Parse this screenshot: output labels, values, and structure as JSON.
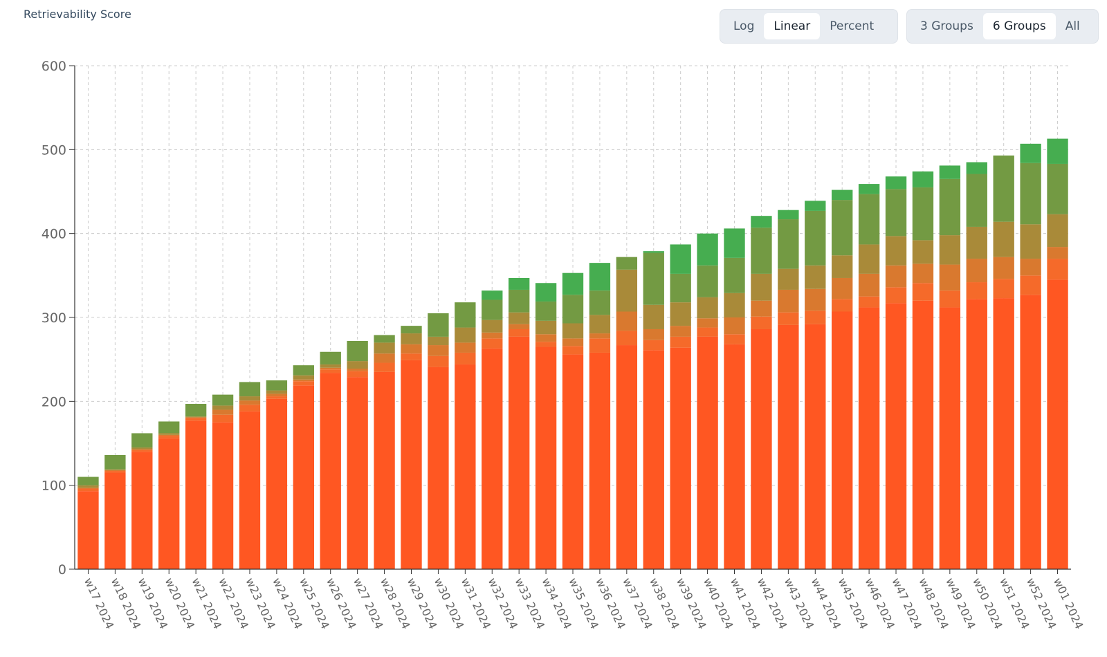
{
  "title": "Retrievability Score",
  "scale_toggle": {
    "options": [
      "Log",
      "Linear",
      "Percent"
    ],
    "active": "Linear"
  },
  "groups_toggle": {
    "options": [
      "3 Groups",
      "6 Groups",
      "All"
    ],
    "active": "6 Groups"
  },
  "chart_data": {
    "type": "bar",
    "stacked": true,
    "ylim": [
      0,
      600
    ],
    "yticks": [
      0,
      100,
      200,
      300,
      400,
      500,
      600
    ],
    "grid": true,
    "categories": [
      "w17 2024",
      "w18 2024",
      "w19 2024",
      "w20 2024",
      "w21 2024",
      "w22 2024",
      "w23 2024",
      "w24 2024",
      "w25 2024",
      "w26 2024",
      "w27 2024",
      "w28 2024",
      "w29 2024",
      "w30 2024",
      "w31 2024",
      "w32 2024",
      "w33 2024",
      "w34 2024",
      "w35 2024",
      "w36 2024",
      "w37 2024",
      "w38 2024",
      "w39 2024",
      "w40 2024",
      "w41 2024",
      "w42 2024",
      "w43 2024",
      "w44 2024",
      "w45 2024",
      "w46 2024",
      "w47 2024",
      "w48 2024",
      "w49 2024",
      "w50 2024",
      "w51 2024",
      "w52 2024",
      "w01 2024"
    ],
    "series": [
      {
        "color": "#ff5722",
        "values": [
          93,
          115,
          140,
          156,
          177,
          175,
          188,
          203,
          219,
          234,
          229,
          235,
          249,
          241,
          244,
          263,
          277,
          265,
          256,
          258,
          267,
          261,
          264,
          277,
          268,
          286,
          291,
          292,
          307,
          312,
          317,
          320,
          312,
          322,
          323,
          327,
          345
        ]
      },
      {
        "color": "#f56a2a",
        "values": [
          3,
          2,
          2,
          3,
          3,
          9,
          8,
          3,
          5,
          4,
          7,
          11,
          8,
          13,
          14,
          12,
          9,
          6,
          10,
          17,
          17,
          12,
          13,
          11,
          12,
          15,
          15,
          16,
          15,
          13,
          19,
          21,
          20,
          20,
          23,
          23,
          25
        ]
      },
      {
        "color": "#d9792f",
        "values": [
          1,
          1,
          1,
          1,
          1,
          6,
          5,
          3,
          2,
          2,
          3,
          11,
          11,
          13,
          12,
          7,
          6,
          9,
          9,
          6,
          23,
          13,
          13,
          11,
          20,
          19,
          27,
          26,
          25,
          27,
          26,
          23,
          31,
          28,
          26,
          20,
          14
        ]
      },
      {
        "color": "#a98a39",
        "values": [
          3,
          1,
          2,
          2,
          1,
          5,
          5,
          4,
          5,
          4,
          9,
          13,
          13,
          10,
          18,
          15,
          14,
          16,
          18,
          22,
          50,
          29,
          28,
          25,
          29,
          32,
          25,
          28,
          27,
          35,
          35,
          28,
          35,
          38,
          42,
          41,
          39
        ]
      },
      {
        "color": "#739a43",
        "values": [
          10,
          17,
          17,
          14,
          15,
          13,
          17,
          12,
          12,
          15,
          24,
          9,
          9,
          28,
          30,
          24,
          27,
          23,
          34,
          29,
          15,
          62,
          34,
          38,
          42,
          55,
          59,
          65,
          66,
          60,
          56,
          63,
          67,
          63,
          79,
          73,
          60
        ]
      },
      {
        "color": "#46ad50",
        "values": [
          0,
          0,
          0,
          0,
          0,
          0,
          0,
          0,
          0,
          0,
          0,
          0,
          0,
          0,
          0,
          11,
          14,
          22,
          26,
          33,
          0,
          2,
          35,
          38,
          35,
          14,
          11,
          12,
          12,
          12,
          15,
          19,
          16,
          14,
          0,
          23,
          30
        ]
      }
    ]
  }
}
